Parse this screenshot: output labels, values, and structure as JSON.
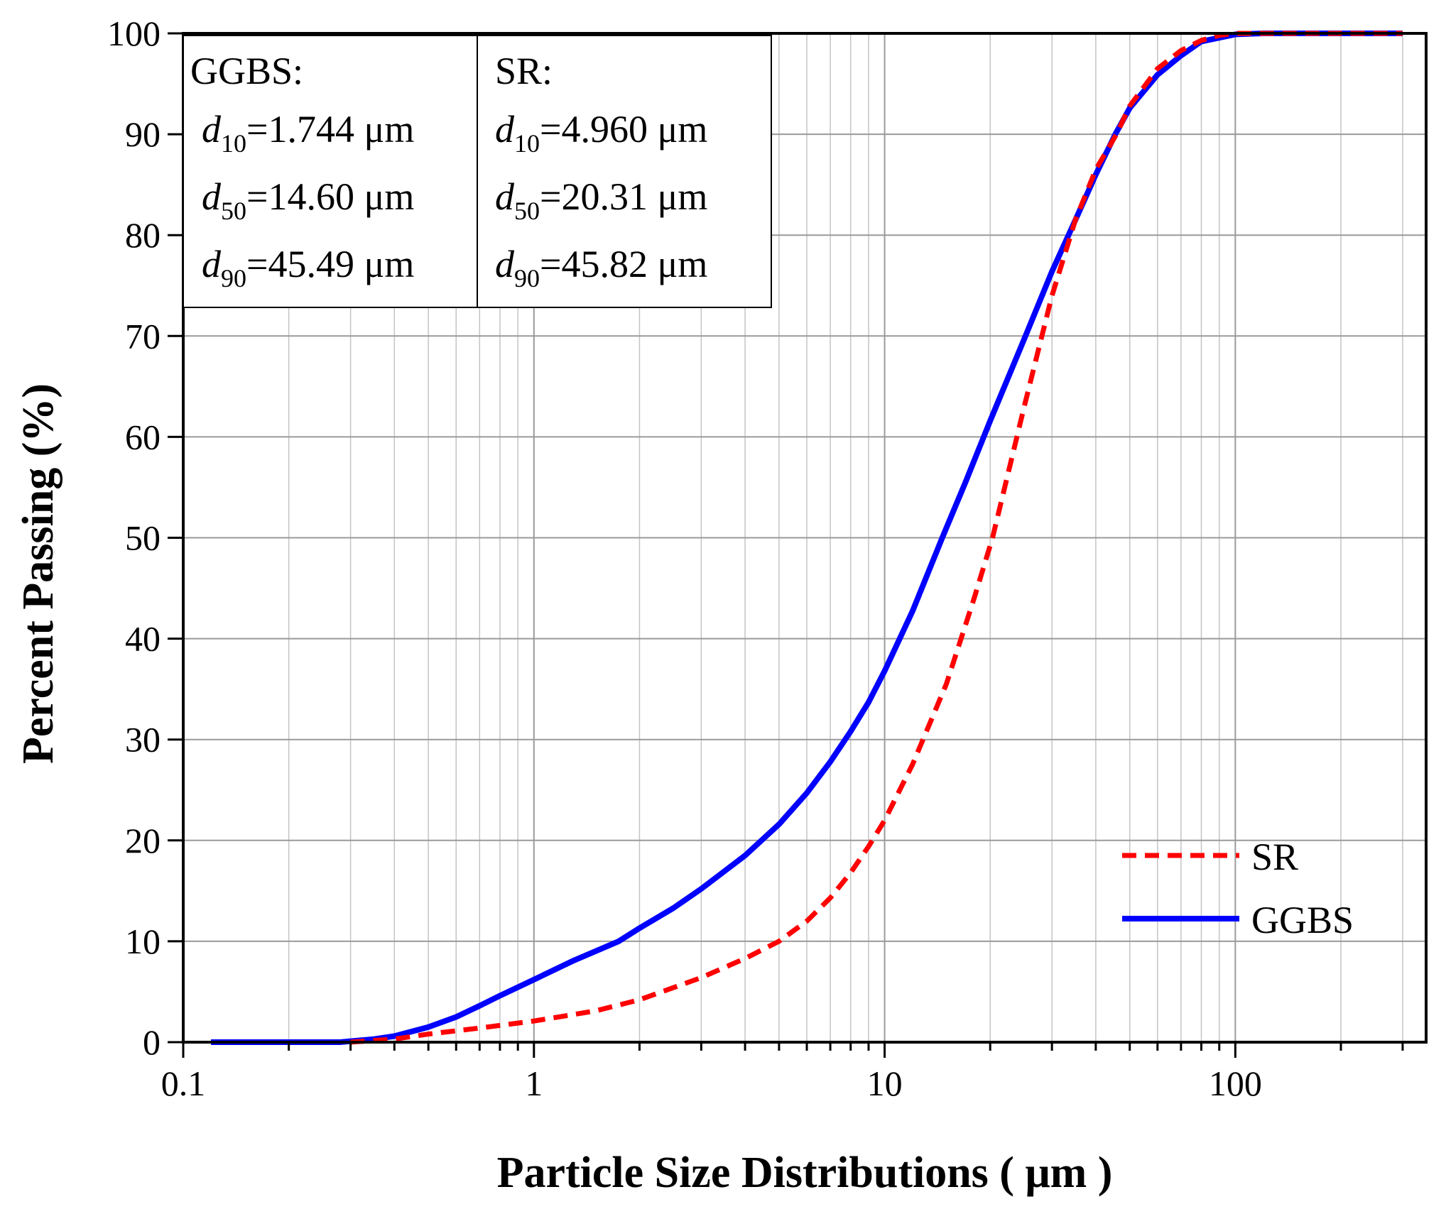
{
  "chart_data": {
    "type": "line",
    "title": "",
    "xlabel": "Particle Size Distributions ( μm )",
    "ylabel": "Percent Passing (%)",
    "xscale": "log",
    "xlim": [
      0.1,
      350
    ],
    "ylim": [
      0,
      100
    ],
    "xticks": [
      0.1,
      1,
      10,
      100
    ],
    "xtick_labels": [
      "0.1",
      "1",
      "10",
      "100"
    ],
    "yticks": [
      0,
      10,
      20,
      30,
      40,
      50,
      60,
      70,
      80,
      90,
      100
    ],
    "ytick_labels": [
      "0",
      "10",
      "20",
      "30",
      "40",
      "50",
      "60",
      "70",
      "80",
      "90",
      "100"
    ],
    "grid": true,
    "legend_position": "bottom-right",
    "series": [
      {
        "name": "SR",
        "color": "#ff0000",
        "style": "dashed",
        "x": [
          0.3,
          0.4,
          0.5,
          0.7,
          1.0,
          1.5,
          2.0,
          3.0,
          4.0,
          5.0,
          6.0,
          7.0,
          8.0,
          9.0,
          10.0,
          12.0,
          15.0,
          18.0,
          20.31,
          25.0,
          30.0,
          35.0,
          40.0,
          45.82,
          50.0,
          60.0,
          70.0,
          80.0,
          90.0,
          100.0,
          150.0,
          200.0,
          300.0
        ],
        "values": [
          0.0,
          0.3,
          0.8,
          1.4,
          2.1,
          3.1,
          4.2,
          6.4,
          8.3,
          10.0,
          12.0,
          14.3,
          16.8,
          19.4,
          22.0,
          27.5,
          35.5,
          44.0,
          50.0,
          63.0,
          74.0,
          81.5,
          86.5,
          90.0,
          92.8,
          96.5,
          98.3,
          99.3,
          99.8,
          100.0,
          100.0,
          100.0,
          100.0
        ]
      },
      {
        "name": "GGBS",
        "color": "#0000ff",
        "style": "solid",
        "x": [
          0.12,
          0.2,
          0.28,
          0.35,
          0.4,
          0.5,
          0.6,
          0.7,
          0.8,
          1.0,
          1.3,
          1.744,
          2.0,
          2.5,
          3.0,
          4.0,
          5.0,
          6.0,
          7.0,
          8.0,
          9.0,
          10.0,
          12.0,
          14.6,
          17.0,
          20.0,
          25.0,
          30.0,
          35.0,
          40.0,
          45.49,
          50.0,
          60.0,
          70.0,
          80.0,
          100.0,
          120.0,
          150.0,
          200.0,
          300.0
        ],
        "values": [
          0.0,
          0.0,
          0.0,
          0.3,
          0.6,
          1.5,
          2.5,
          3.6,
          4.6,
          6.2,
          8.1,
          10.0,
          11.3,
          13.3,
          15.2,
          18.5,
          21.6,
          24.7,
          27.8,
          30.8,
          33.7,
          36.8,
          42.7,
          50.0,
          55.5,
          61.6,
          69.7,
          76.4,
          81.5,
          86.0,
          90.0,
          92.6,
          95.9,
          97.8,
          99.2,
          99.9,
          100.0,
          100.0,
          100.0,
          100.0
        ]
      }
    ],
    "annotations": {
      "ggbs": {
        "heading": "GGBS:",
        "rows": [
          {
            "var": "d",
            "sub": "10",
            "value": "=1.744 μm"
          },
          {
            "var": "d",
            "sub": "50",
            "value": "=14.60 μm"
          },
          {
            "var": "d",
            "sub": "90",
            "value": "=45.49 μm"
          }
        ]
      },
      "sr": {
        "heading": "SR:",
        "rows": [
          {
            "var": "d",
            "sub": "10",
            "value": "=4.960 μm"
          },
          {
            "var": "d",
            "sub": "50",
            "value": "=20.31 μm"
          },
          {
            "var": "d",
            "sub": "90",
            "value": "=45.82 μm"
          }
        ]
      }
    }
  }
}
